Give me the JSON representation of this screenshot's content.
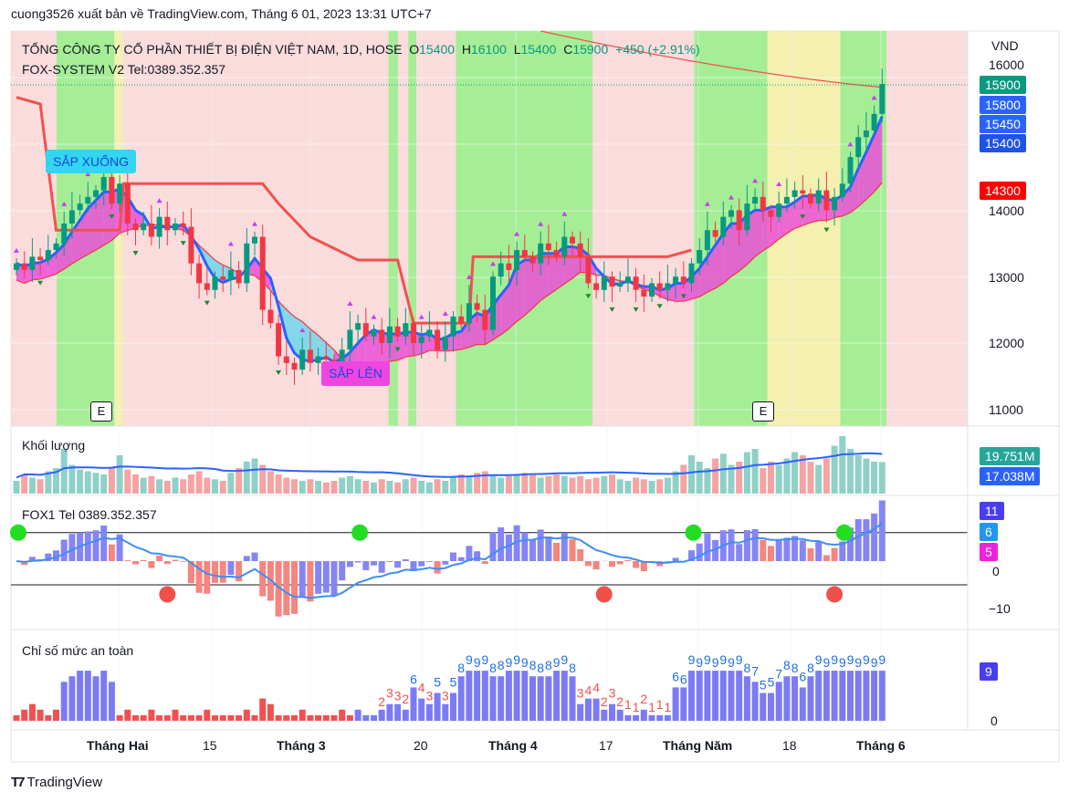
{
  "header": {
    "publisher": "cuong3526 xuất bản về TradingView.com, Tháng 6 01, 2023 13:31 UTC+7"
  },
  "legend": {
    "symbol": "TỔNG CÔNG TY CỔ PHẦN THIẾT BỊ ĐIỆN VIỆT NAM, 1D, HOSE",
    "o_label": "O",
    "o": "15400",
    "h_label": "H",
    "h": "16100",
    "l_label": "L",
    "l": "15400",
    "c_label": "C",
    "c": "15900",
    "change": "+450 (+2.91%)",
    "indicator": "FOX-SYSTEM V2 Tel:0389.352.357",
    "volume": "Khối lượng",
    "fox1": "FOX1 Tel 0389.352.357",
    "safety": "Chỉ số mức an toàn"
  },
  "price_axis": {
    "currency": "VND",
    "ticks": [
      "16000",
      "14000",
      "13000",
      "12000",
      "11000"
    ],
    "badges": [
      {
        "value": "15900",
        "color": "#089981"
      },
      {
        "value": "15800",
        "color": "#2962ff"
      },
      {
        "value": "15450",
        "color": "#2962ff"
      },
      {
        "value": "15400",
        "color": "#1e53e5"
      },
      {
        "value": "14300",
        "color": "#ff0000"
      }
    ]
  },
  "volume_axis": {
    "badges": [
      {
        "value": "19.751M",
        "color": "#26a69a"
      },
      {
        "value": "17.038M",
        "color": "#2962ff"
      }
    ]
  },
  "fox1_axis": {
    "badges": [
      {
        "value": "11",
        "color": "#4a3cf0"
      },
      {
        "value": "6",
        "color": "#2196f3"
      },
      {
        "value": "5",
        "color": "#f020e0"
      }
    ],
    "ticks": [
      "0",
      "−10"
    ]
  },
  "safety_axis": {
    "badges": [
      {
        "value": "9",
        "color": "#4a3cf0"
      }
    ],
    "ticks": [
      "0"
    ]
  },
  "time_axis": [
    {
      "label": "Tháng Hai",
      "bold": true
    },
    {
      "label": "15",
      "bold": false
    },
    {
      "label": "Tháng 3",
      "bold": true
    },
    {
      "label": "20",
      "bold": false
    },
    {
      "label": "Tháng 4",
      "bold": true
    },
    {
      "label": "17",
      "bold": false
    },
    {
      "label": "Tháng Năm",
      "bold": true
    },
    {
      "label": "18",
      "bold": false
    },
    {
      "label": "Tháng 6",
      "bold": true
    }
  ],
  "markers": {
    "sell": "SẮP XUỐNG",
    "buy": "SẮP LÊN",
    "earnings": "E"
  },
  "footer": {
    "brand": "TradingView"
  },
  "chart_data": {
    "type": "candlestick",
    "title": "TỔNG CÔNG TY CỔ PHẦN THIẾT BỊ ĐIỆN VIỆT NAM, 1D, HOSE",
    "ylim": [
      10700,
      16400
    ],
    "closes": [
      13200,
      13100,
      13300,
      13250,
      13400,
      13500,
      13800,
      14000,
      14100,
      14200,
      14300,
      14500,
      14100,
      14400,
      13800,
      13700,
      13800,
      13600,
      13900,
      13700,
      13800,
      13750,
      13200,
      12900,
      12800,
      13000,
      12950,
      13100,
      12900,
      13500,
      13600,
      12500,
      12300,
      11800,
      11700,
      11600,
      11900,
      11700,
      11800,
      11750,
      11600,
      11900,
      12200,
      12300,
      12100,
      12200,
      12000,
      12250,
      12100,
      12300,
      12000,
      12100,
      12200,
      11900,
      12100,
      12400,
      12300,
      12600,
      12500,
      12200,
      13000,
      13200,
      13100,
      13400,
      13300,
      13200,
      13500,
      13400,
      13300,
      13600,
      13500,
      13300,
      12900,
      12800,
      13000,
      12850,
      12900,
      13000,
      12800,
      12700,
      12900,
      12800,
      12900,
      13000,
      12900,
      13200,
      13400,
      13700,
      13600,
      13900,
      14000,
      13700,
      14100,
      14200,
      14000,
      13900,
      14100,
      14200,
      14300,
      14250,
      14100,
      14300,
      14000,
      14200,
      14400,
      14800,
      15100,
      15200,
      15450,
      15900
    ],
    "volume_m": [
      8,
      12,
      10,
      9,
      14,
      16,
      28,
      18,
      15,
      14,
      13,
      12,
      16,
      24,
      15,
      12,
      10,
      11,
      9,
      8,
      10,
      9,
      12,
      14,
      10,
      9,
      8,
      13,
      16,
      20,
      22,
      18,
      14,
      12,
      10,
      9,
      8,
      9,
      8,
      7,
      8,
      10,
      11,
      9,
      8,
      7,
      9,
      8,
      7,
      9,
      10,
      8,
      7,
      9,
      8,
      10,
      12,
      11,
      13,
      14,
      12,
      10,
      11,
      12,
      13,
      12,
      10,
      11,
      12,
      11,
      10,
      11,
      9,
      10,
      11,
      12,
      9,
      8,
      10,
      9,
      8,
      9,
      10,
      14,
      18,
      24,
      20,
      16,
      22,
      25,
      18,
      20,
      26,
      28,
      16,
      20,
      18,
      22,
      26,
      24,
      20,
      18,
      22,
      30,
      36,
      28,
      24,
      22,
      20,
      19.751
    ],
    "safety": [
      1,
      2,
      3,
      2,
      1,
      2,
      7,
      8,
      9,
      9,
      8,
      9,
      7,
      1,
      2,
      1,
      1,
      2,
      1,
      1,
      2,
      1,
      1,
      1,
      2,
      1,
      1,
      1,
      1,
      2,
      1,
      4,
      3,
      1,
      1,
      1,
      2,
      1,
      1,
      1,
      1,
      2,
      1,
      2,
      1,
      1,
      2,
      3,
      3,
      2,
      6,
      4,
      3,
      5,
      3,
      5,
      8,
      9,
      9,
      9,
      8,
      8,
      9,
      9,
      9,
      8,
      8,
      8,
      9,
      9,
      8,
      3,
      4,
      4,
      2,
      3,
      2,
      1,
      1,
      2,
      1,
      1,
      1,
      6,
      6,
      9,
      9,
      9,
      9,
      9,
      9,
      9,
      8,
      7,
      5,
      5,
      7,
      8,
      8,
      6,
      8,
      9,
      9,
      9,
      9,
      9,
      9,
      9,
      9,
      9
    ],
    "regimes": [
      {
        "from": 5.5,
        "to": 12.8,
        "state": "green"
      },
      {
        "from": 12.8,
        "to": 13.9,
        "state": "yellow"
      },
      {
        "from": 47.3,
        "to": 48.5,
        "state": "green"
      },
      {
        "from": 49.8,
        "to": 50.8,
        "state": "green"
      },
      {
        "from": 55.8,
        "to": 73,
        "state": "green"
      },
      {
        "from": 85.8,
        "to": 95,
        "state": "green"
      },
      {
        "from": 95,
        "to": 104.2,
        "state": "yellow"
      },
      {
        "from": 104.2,
        "to": 110,
        "state": "green"
      }
    ],
    "stop_line": [
      [
        0,
        15700
      ],
      [
        3,
        15600
      ],
      [
        5,
        13700
      ],
      [
        13,
        13700
      ],
      [
        13.5,
        14400
      ],
      [
        31,
        14400
      ],
      [
        33,
        14100
      ],
      [
        37,
        13600
      ],
      [
        43,
        13250
      ],
      [
        48,
        13250
      ],
      [
        50,
        12300
      ],
      [
        57,
        12300
      ],
      [
        57.5,
        13300
      ],
      [
        82,
        13300
      ],
      [
        85,
        13400
      ]
    ],
    "long_ma": [
      [
        66,
        16800
      ],
      [
        80,
        16450
      ],
      [
        95,
        16100
      ],
      [
        109,
        15850
      ]
    ],
    "fox1_up_signals": [
      0,
      43,
      85,
      104
    ],
    "fox1_down_signals": [
      19,
      74,
      103
    ],
    "fox1_levels": [
      6,
      -5
    ]
  }
}
